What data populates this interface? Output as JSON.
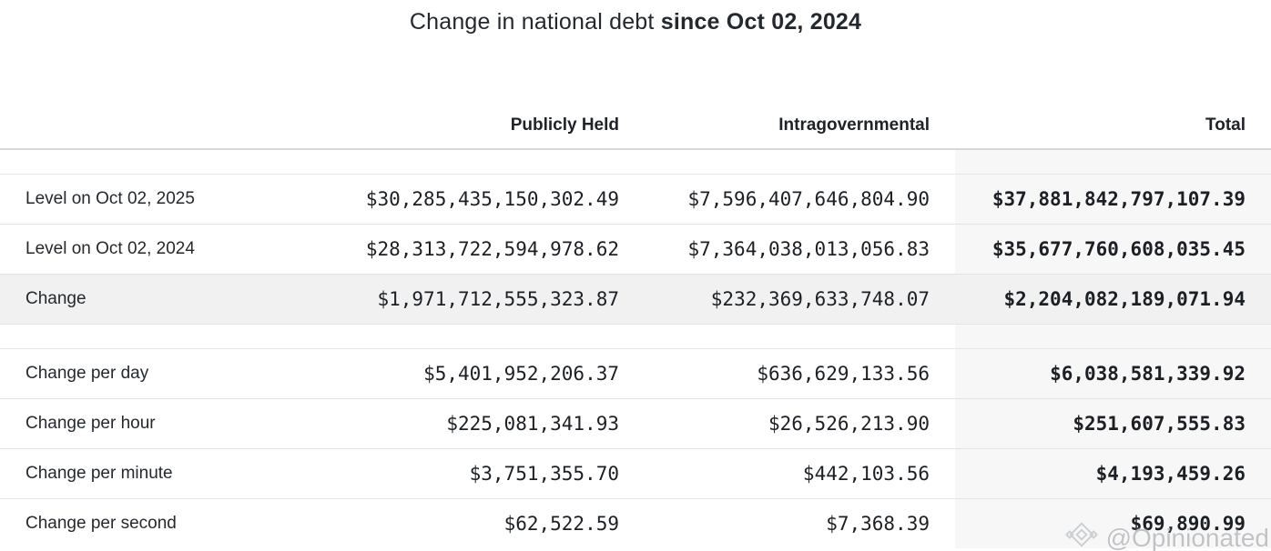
{
  "title": {
    "regular": "Change in national debt ",
    "bold": "since Oct 02, 2024"
  },
  "table": {
    "columns": [
      "",
      "Publicly Held",
      "Intragovernmental",
      "Total"
    ],
    "sections": [
      {
        "rows": [
          {
            "label": "Level on Oct 02, 2025",
            "publicly_held": "$30,285,435,150,302.49",
            "intragovernmental": "$7,596,407,646,804.90",
            "total": "$37,881,842,797,107.39",
            "highlight": false
          },
          {
            "label": "Level on Oct 02, 2024",
            "publicly_held": "$28,313,722,594,978.62",
            "intragovernmental": "$7,364,038,013,056.83",
            "total": "$35,677,760,608,035.45",
            "highlight": false
          },
          {
            "label": "Change",
            "publicly_held": "$1,971,712,555,323.87",
            "intragovernmental": "$232,369,633,748.07",
            "total": "$2,204,082,189,071.94",
            "highlight": true
          }
        ]
      },
      {
        "rows": [
          {
            "label": "Change per day",
            "publicly_held": "$5,401,952,206.37",
            "intragovernmental": "$636,629,133.56",
            "total": "$6,038,581,339.92",
            "highlight": false
          },
          {
            "label": "Change per hour",
            "publicly_held": "$225,081,341.93",
            "intragovernmental": "$26,526,213.90",
            "total": "$251,607,555.83",
            "highlight": false
          },
          {
            "label": "Change per minute",
            "publicly_held": "$3,751,355.70",
            "intragovernmental": "$442,103.56",
            "total": "$4,193,459.26",
            "highlight": false
          },
          {
            "label": "Change per second",
            "publicly_held": "$62,522.59",
            "intragovernmental": "$7,368.39",
            "total": "$69,890.99",
            "highlight": false
          }
        ]
      }
    ]
  },
  "watermark": {
    "text": "@Opinionated",
    "icon": "diamond-logo-icon"
  },
  "colors": {
    "highlight_row_bg": "#f1f1f2",
    "total_column_bg": "#f7f7f8",
    "header_rule": "#d7d7d7",
    "row_divider": "#e4e4e4",
    "text": "#24292e"
  },
  "chart_data": {
    "type": "table",
    "title": "Change in national debt since Oct 02, 2024",
    "columns": [
      "Publicly Held",
      "Intragovernmental",
      "Total"
    ],
    "rows": [
      {
        "label": "Level on Oct 02, 2025",
        "values": [
          30285435150302.49,
          7596407646804.9,
          37881842797107.39
        ]
      },
      {
        "label": "Level on Oct 02, 2024",
        "values": [
          28313722594978.62,
          7364038013056.83,
          35677760608035.45
        ]
      },
      {
        "label": "Change",
        "values": [
          1971712555323.87,
          232369633748.07,
          2204082189071.94
        ]
      },
      {
        "label": "Change per day",
        "values": [
          5401952206.37,
          636629133.56,
          6038581339.92
        ]
      },
      {
        "label": "Change per hour",
        "values": [
          225081341.93,
          26526213.9,
          251607555.83
        ]
      },
      {
        "label": "Change per minute",
        "values": [
          3751355.7,
          442103.56,
          4193459.26
        ]
      },
      {
        "label": "Change per second",
        "values": [
          62522.59,
          7368.39,
          69890.99
        ]
      }
    ]
  }
}
